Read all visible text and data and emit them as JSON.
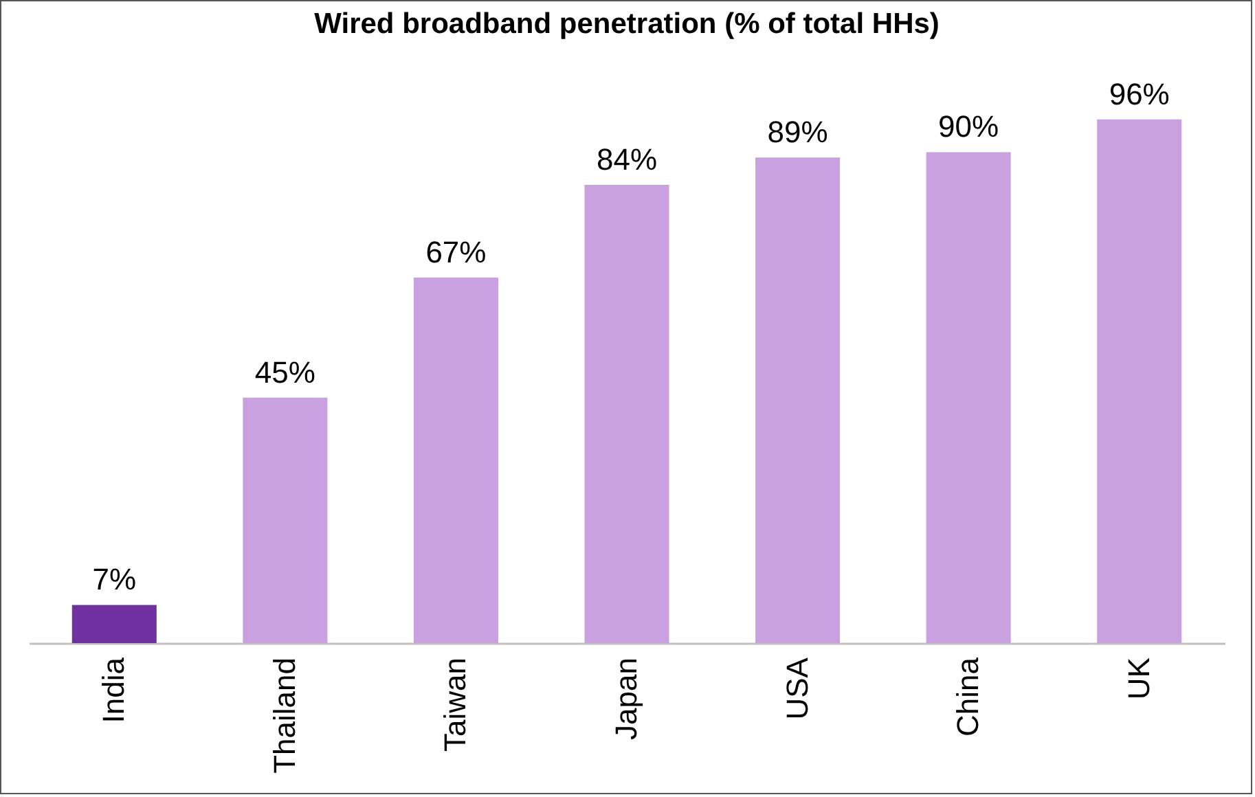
{
  "chart_data": {
    "type": "bar",
    "title": "Wired broadband penetration (% of total HHs)",
    "categories": [
      "India",
      "Thailand",
      "Taiwan",
      "Japan",
      "USA",
      "China",
      "UK"
    ],
    "values": [
      7,
      45,
      67,
      84,
      89,
      90,
      96
    ],
    "colors": [
      "#7030a0",
      "#c9a0e0",
      "#c9a0e0",
      "#c9a0e0",
      "#c9a0e0",
      "#c9a0e0",
      "#c9a0e0"
    ],
    "value_labels": [
      "7%",
      "45%",
      "67%",
      "84%",
      "89%",
      "90%",
      "96%"
    ],
    "tick_labels": "x"
  }
}
